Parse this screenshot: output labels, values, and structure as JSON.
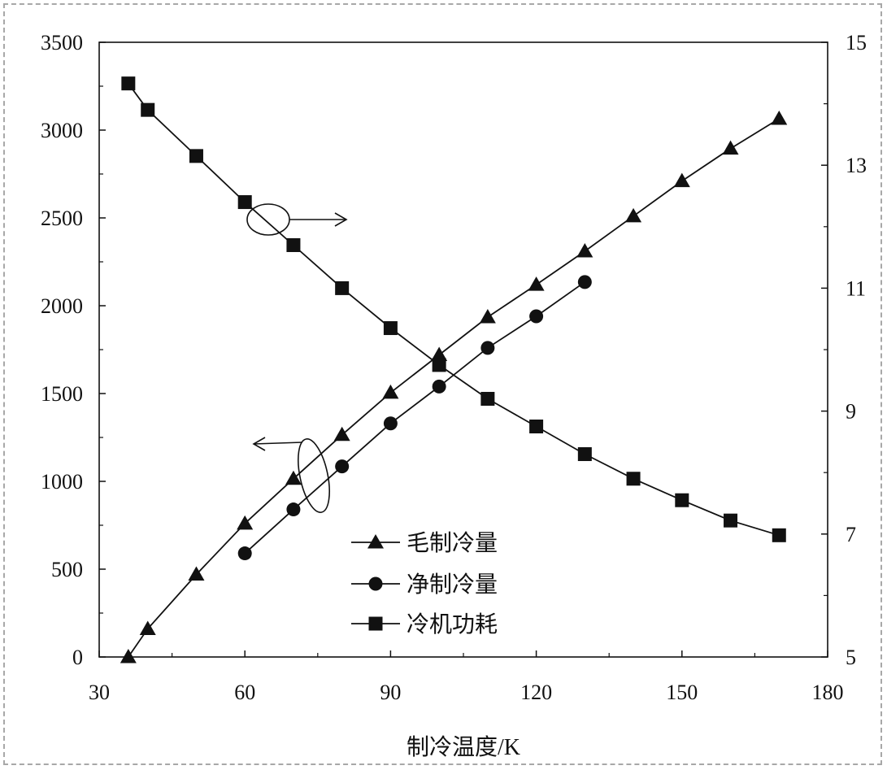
{
  "chart_data": {
    "type": "line",
    "xlabel": "制冷温度/K",
    "ylabel": "",
    "ylabel_right": "",
    "xlim": [
      30,
      180
    ],
    "ylim": [
      0,
      3500
    ],
    "ylim_right": [
      5,
      15
    ],
    "x_ticks": [
      30,
      60,
      90,
      120,
      150,
      180
    ],
    "y_ticks": [
      0,
      500,
      1000,
      1500,
      2000,
      2500,
      3000,
      3500
    ],
    "y_right_ticks": [
      5,
      7,
      9,
      11,
      13,
      15
    ],
    "grid": false,
    "legend_position": "bottom-center",
    "series": [
      {
        "name": "毛制冷量",
        "marker": "triangle",
        "axis": "left",
        "x": [
          36,
          40,
          50,
          60,
          70,
          80,
          90,
          100,
          110,
          120,
          130,
          140,
          150,
          160,
          170
        ],
        "y": [
          0,
          160,
          470,
          760,
          1015,
          1265,
          1505,
          1720,
          1935,
          2120,
          2310,
          2510,
          2710,
          2895,
          3065
        ]
      },
      {
        "name": "净制冷量",
        "marker": "circle",
        "axis": "left",
        "x": [
          60,
          70,
          80,
          90,
          100,
          110,
          120,
          130
        ],
        "y": [
          590,
          840,
          1085,
          1330,
          1540,
          1760,
          1940,
          2135
        ]
      },
      {
        "name": "冷机功耗",
        "marker": "square",
        "axis": "right",
        "x": [
          36,
          40,
          50,
          60,
          70,
          80,
          90,
          100,
          110,
          120,
          130,
          140,
          150,
          160,
          170
        ],
        "y": [
          14.33,
          13.9,
          13.15,
          12.4,
          11.7,
          11.0,
          10.35,
          9.75,
          9.2,
          8.75,
          8.3,
          7.9,
          7.55,
          7.22,
          6.98
        ]
      }
    ]
  }
}
